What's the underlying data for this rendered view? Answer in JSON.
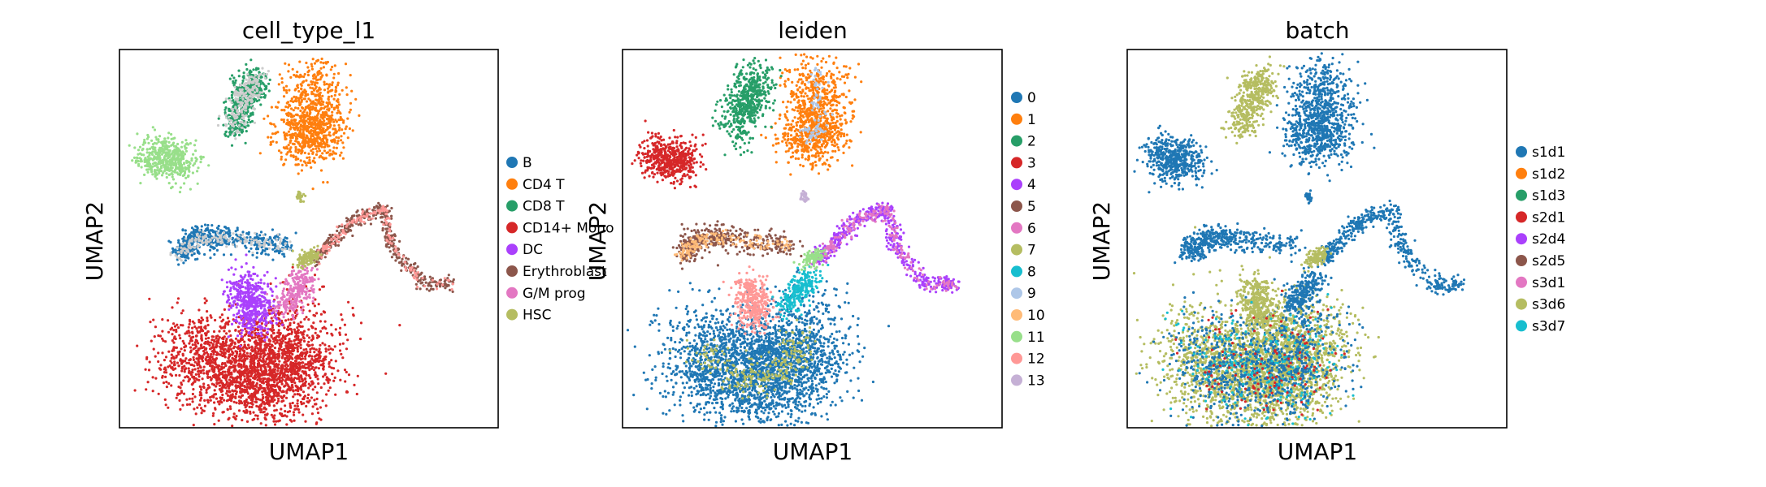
{
  "chart_data": [
    {
      "type": "scatter",
      "title": "cell_type_l1",
      "xlabel": "UMAP1",
      "ylabel": "UMAP2",
      "legend_position": "right",
      "grid": false,
      "legend": [
        {
          "label": "B",
          "color": "#1f77b4"
        },
        {
          "label": "CD4 T",
          "color": "#ff7f0e"
        },
        {
          "label": "CD8 T",
          "color": "#279e68"
        },
        {
          "label": "CD14+ Mono",
          "color": "#d62728"
        },
        {
          "label": "DC",
          "color": "#aa40fc"
        },
        {
          "label": "Erythroblast",
          "color": "#8c564b"
        },
        {
          "label": "G/M prog",
          "color": "#e377c2"
        },
        {
          "label": "HSC",
          "color": "#b5bd61"
        }
      ]
    },
    {
      "type": "scatter",
      "title": "leiden",
      "xlabel": "UMAP1",
      "ylabel": "UMAP2",
      "legend_position": "right",
      "grid": false,
      "legend": [
        {
          "label": "0",
          "color": "#1f77b4"
        },
        {
          "label": "1",
          "color": "#ff7f0e"
        },
        {
          "label": "2",
          "color": "#279e68"
        },
        {
          "label": "3",
          "color": "#d62728"
        },
        {
          "label": "4",
          "color": "#aa40fc"
        },
        {
          "label": "5",
          "color": "#8c564b"
        },
        {
          "label": "6",
          "color": "#e377c2"
        },
        {
          "label": "7",
          "color": "#b5bd61"
        },
        {
          "label": "8",
          "color": "#17becf"
        },
        {
          "label": "9",
          "color": "#aec7e8"
        },
        {
          "label": "10",
          "color": "#ffbb78"
        },
        {
          "label": "11",
          "color": "#98df8a"
        },
        {
          "label": "12",
          "color": "#ff9896"
        },
        {
          "label": "13",
          "color": "#c5b0d5"
        }
      ]
    },
    {
      "type": "scatter",
      "title": "batch",
      "xlabel": "UMAP1",
      "ylabel": "UMAP2",
      "legend_position": "right",
      "grid": false,
      "legend": [
        {
          "label": "s1d1",
          "color": "#1f77b4"
        },
        {
          "label": "s1d2",
          "color": "#ff7f0e"
        },
        {
          "label": "s1d3",
          "color": "#279e68"
        },
        {
          "label": "s2d1",
          "color": "#d62728"
        },
        {
          "label": "s2d4",
          "color": "#aa40fc"
        },
        {
          "label": "s2d5",
          "color": "#8c564b"
        },
        {
          "label": "s3d1",
          "color": "#e377c2"
        },
        {
          "label": "s3d6",
          "color": "#b5bd61"
        },
        {
          "label": "s3d7",
          "color": "#17becf"
        }
      ]
    }
  ]
}
